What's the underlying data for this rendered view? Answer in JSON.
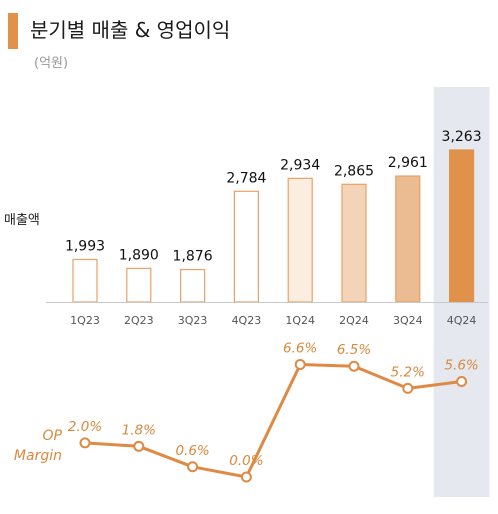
{
  "title": "분기별 매출 & 영업이익",
  "subtitle": "(억원)",
  "colors": {
    "accent": "#E0914A",
    "bar_outline": "#E8A266",
    "line": "#DE8A44",
    "op_text": "#D9893F",
    "highlight_band": "#E6E8EF",
    "axis": "#C9C9C9"
  },
  "chart_data": [
    {
      "type": "bar",
      "categories": [
        "1Q23",
        "2Q23",
        "3Q23",
        "4Q23",
        "1Q24",
        "2Q24",
        "3Q24",
        "4Q24"
      ],
      "values": [
        1993,
        1890,
        1876,
        2784,
        2934,
        2865,
        2961,
        3263
      ],
      "value_labels": [
        "1,993",
        "1,890",
        "1,876",
        "2,784",
        "2,934",
        "2,865",
        "2,961",
        "3,263"
      ],
      "fill_colors": [
        "#FFFFFF",
        "#FFFFFF",
        "#FFFFFF",
        "#FFFFFF",
        "#FBEDE0",
        "#F3D4B8",
        "#EBBC91",
        "#E0914A"
      ],
      "ylabel": "매출액",
      "highlight_category": "4Q24"
    },
    {
      "type": "line",
      "categories": [
        "1Q23",
        "2Q23",
        "3Q23",
        "4Q23",
        "1Q24",
        "2Q24",
        "3Q24",
        "4Q24"
      ],
      "values": [
        2.0,
        1.8,
        0.6,
        0.0,
        6.6,
        6.5,
        5.2,
        5.6
      ],
      "value_labels": [
        "2.0%",
        "1.8%",
        "0.6%",
        "0.0%",
        "6.6%",
        "6.5%",
        "5.2%",
        "5.6%"
      ],
      "ylabel_lines": [
        "OP",
        "Margin"
      ]
    }
  ]
}
